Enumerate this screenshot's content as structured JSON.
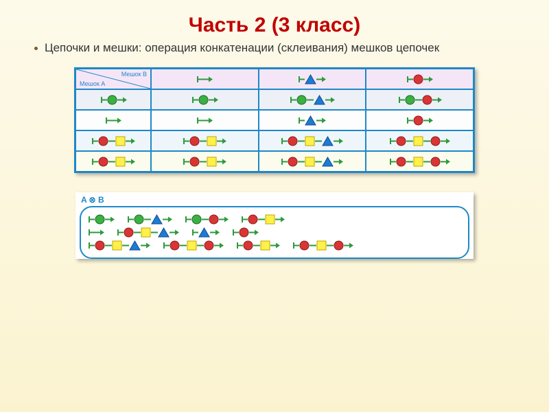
{
  "title": "Часть 2 (3 класс)",
  "subtitle": "Цепочки и мешки: операция конкатенации (склеивания) мешков цепочек",
  "colors": {
    "green": {
      "fill": "#3cb043",
      "stroke": "#1d6b22"
    },
    "red": {
      "fill": "#d93535",
      "stroke": "#8a1c1c"
    },
    "yellow": {
      "fill": "#fff04a",
      "stroke": "#c2a600"
    },
    "blue": {
      "fill": "#1e7bd4",
      "stroke": "#0d4b8a"
    },
    "arrow": "#2e9a3c",
    "table_border": "#1e88c7",
    "title_color": "#c00000"
  },
  "shape_size": 15,
  "diag_header": {
    "top": "Мешок  B",
    "bottom": "Мешок  A"
  },
  "table": {
    "col_headers": [
      [],
      [
        {
          "s": "tri",
          "c": "blue"
        }
      ],
      [
        {
          "s": "cir",
          "c": "red"
        }
      ]
    ],
    "row_headers": [
      [
        {
          "s": "cir",
          "c": "green"
        }
      ],
      [],
      [
        {
          "s": "cir",
          "c": "red"
        },
        {
          "s": "sq",
          "c": "yellow"
        }
      ],
      [
        {
          "s": "cir",
          "c": "red"
        },
        {
          "s": "sq",
          "c": "yellow"
        }
      ]
    ],
    "body": [
      [
        [
          {
            "s": "cir",
            "c": "green"
          }
        ],
        [
          {
            "s": "cir",
            "c": "green"
          },
          {
            "s": "tri",
            "c": "blue"
          }
        ],
        [
          {
            "s": "cir",
            "c": "green"
          },
          {
            "s": "cir",
            "c": "red"
          }
        ]
      ],
      [
        [],
        [
          {
            "s": "tri",
            "c": "blue"
          }
        ],
        [
          {
            "s": "cir",
            "c": "red"
          }
        ]
      ],
      [
        [
          {
            "s": "cir",
            "c": "red"
          },
          {
            "s": "sq",
            "c": "yellow"
          }
        ],
        [
          {
            "s": "cir",
            "c": "red"
          },
          {
            "s": "sq",
            "c": "yellow"
          },
          {
            "s": "tri",
            "c": "blue"
          }
        ],
        [
          {
            "s": "cir",
            "c": "red"
          },
          {
            "s": "sq",
            "c": "yellow"
          },
          {
            "s": "cir",
            "c": "red"
          }
        ]
      ],
      [
        [
          {
            "s": "cir",
            "c": "red"
          },
          {
            "s": "sq",
            "c": "yellow"
          }
        ],
        [
          {
            "s": "cir",
            "c": "red"
          },
          {
            "s": "sq",
            "c": "yellow"
          },
          {
            "s": "tri",
            "c": "blue"
          }
        ],
        [
          {
            "s": "cir",
            "c": "red"
          },
          {
            "s": "sq",
            "c": "yellow"
          },
          {
            "s": "cir",
            "c": "red"
          }
        ]
      ]
    ]
  },
  "result_label": "A ⊗ B",
  "result_rows": [
    [
      [
        {
          "s": "cir",
          "c": "green"
        }
      ],
      [
        {
          "s": "cir",
          "c": "green"
        },
        {
          "s": "tri",
          "c": "blue"
        }
      ],
      [
        {
          "s": "cir",
          "c": "green"
        },
        {
          "s": "cir",
          "c": "red"
        }
      ],
      [
        {
          "s": "cir",
          "c": "red"
        },
        {
          "s": "sq",
          "c": "yellow"
        }
      ]
    ],
    [
      [],
      [
        {
          "s": "cir",
          "c": "red"
        },
        {
          "s": "sq",
          "c": "yellow"
        },
        {
          "s": "tri",
          "c": "blue"
        }
      ],
      [
        {
          "s": "tri",
          "c": "blue"
        }
      ],
      [
        {
          "s": "cir",
          "c": "red"
        }
      ]
    ],
    [
      [
        {
          "s": "cir",
          "c": "red"
        },
        {
          "s": "sq",
          "c": "yellow"
        },
        {
          "s": "tri",
          "c": "blue"
        }
      ],
      [
        {
          "s": "cir",
          "c": "red"
        },
        {
          "s": "sq",
          "c": "yellow"
        },
        {
          "s": "cir",
          "c": "red"
        }
      ],
      [
        {
          "s": "cir",
          "c": "red"
        },
        {
          "s": "sq",
          "c": "yellow"
        }
      ],
      [
        {
          "s": "cir",
          "c": "red"
        },
        {
          "s": "sq",
          "c": "yellow"
        },
        {
          "s": "cir",
          "c": "red"
        }
      ]
    ]
  ]
}
